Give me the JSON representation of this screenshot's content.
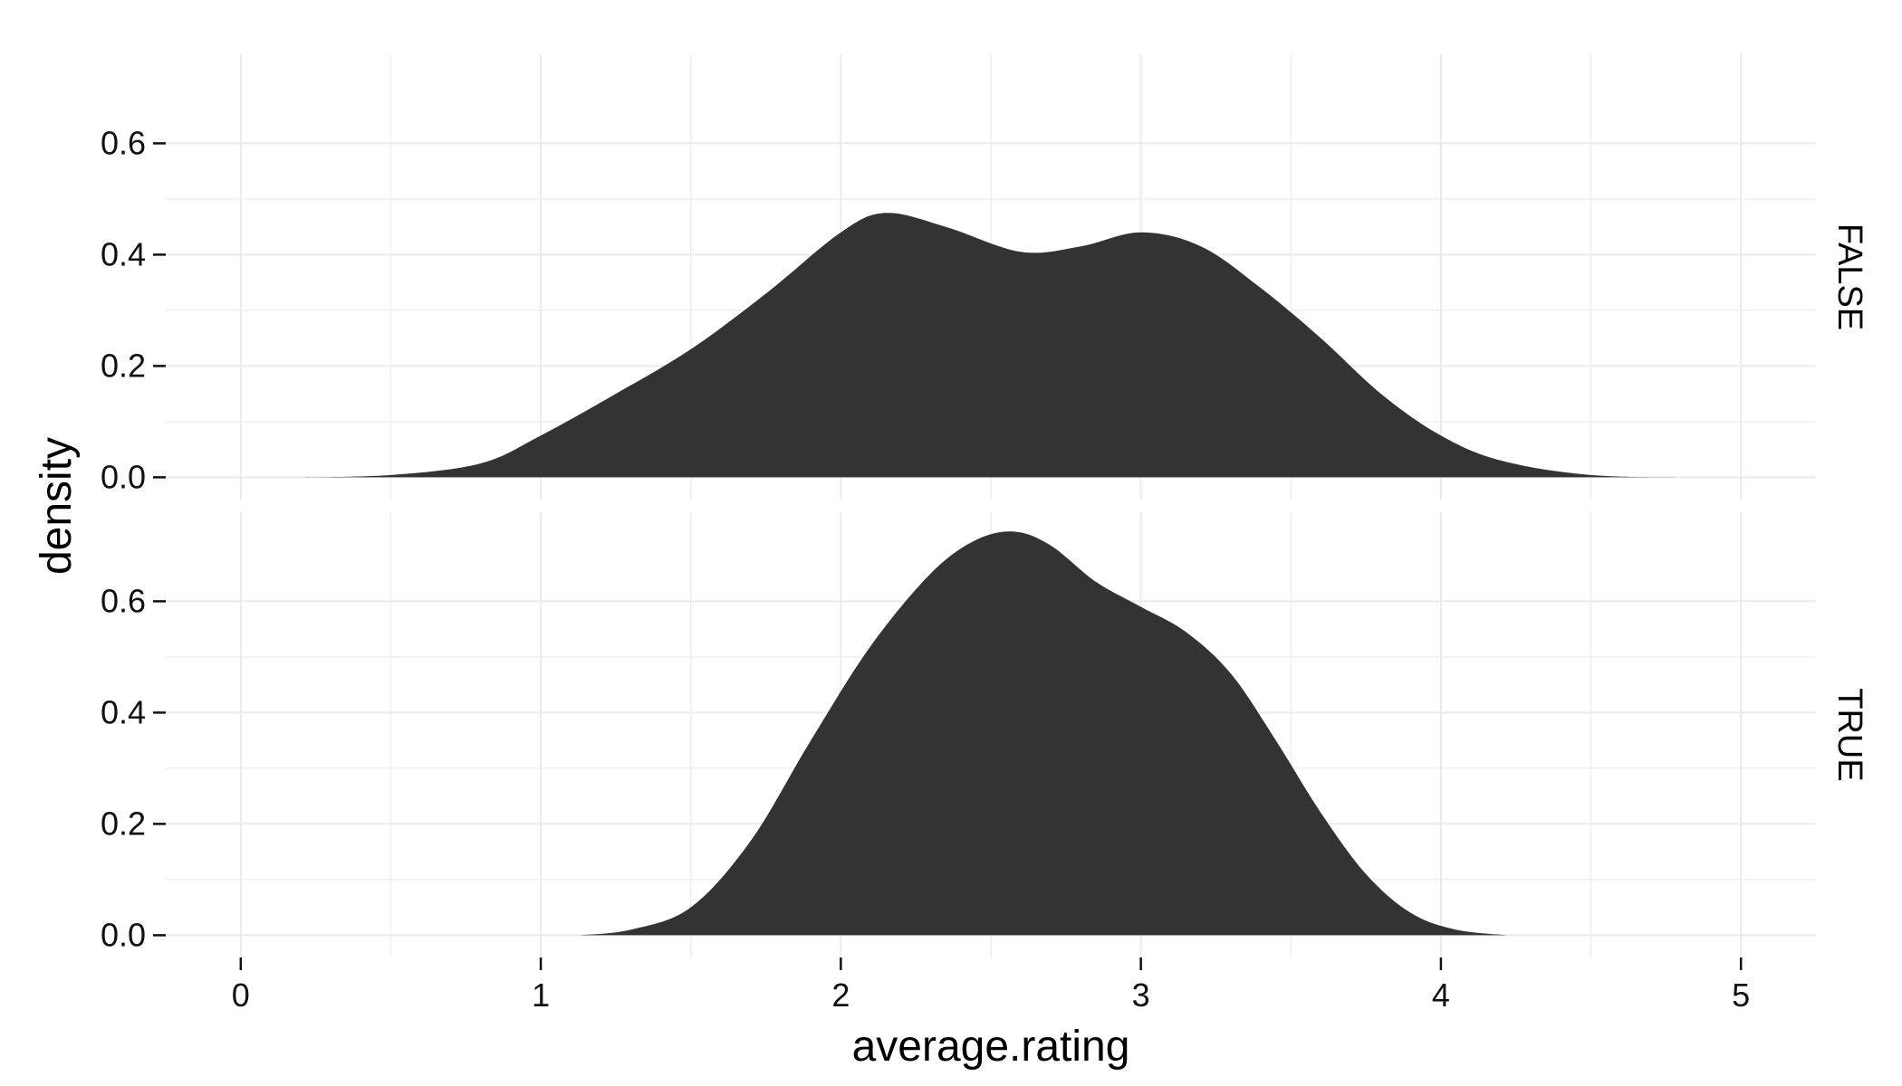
{
  "chart_data": {
    "type": "area",
    "subtype": "density",
    "facet": "rows",
    "xlabel": "average.rating",
    "ylabel": "density",
    "xlim": [
      -0.25,
      5.25
    ],
    "x_ticks": [
      0,
      1,
      2,
      3,
      4,
      5
    ],
    "x_tick_labels": [
      "0",
      "1",
      "2",
      "3",
      "4",
      "5"
    ],
    "grid": true,
    "fill_color": "#333333",
    "grid_color": "#ebebeb",
    "panels": [
      {
        "strip_label": "FALSE",
        "ylim": [
          -0.04,
          0.76
        ],
        "y_ticks": [
          0.0,
          0.2,
          0.4,
          0.6
        ],
        "y_tick_labels": [
          "0.0",
          "0.2",
          "0.4",
          "0.6"
        ],
        "x": [
          0.18,
          0.5,
          0.8,
          1.0,
          1.25,
          1.5,
          1.75,
          2.0,
          2.15,
          2.35,
          2.6,
          2.8,
          3.0,
          3.2,
          3.4,
          3.6,
          3.8,
          4.0,
          4.2,
          4.5,
          4.85
        ],
        "y": [
          0.0,
          0.004,
          0.025,
          0.075,
          0.15,
          0.23,
          0.33,
          0.44,
          0.475,
          0.45,
          0.405,
          0.415,
          0.44,
          0.415,
          0.34,
          0.25,
          0.15,
          0.075,
          0.03,
          0.004,
          0.0
        ]
      },
      {
        "strip_label": "TRUE",
        "ylim": [
          -0.04,
          0.76
        ],
        "y_ticks": [
          0.0,
          0.2,
          0.4,
          0.6
        ],
        "y_tick_labels": [
          "0.0",
          "0.2",
          "0.4",
          "0.6"
        ],
        "x": [
          1.13,
          1.3,
          1.5,
          1.7,
          1.9,
          2.1,
          2.3,
          2.45,
          2.58,
          2.7,
          2.85,
          3.0,
          3.15,
          3.3,
          3.45,
          3.6,
          3.75,
          3.9,
          4.05,
          4.22
        ],
        "y": [
          0.0,
          0.01,
          0.05,
          0.17,
          0.35,
          0.52,
          0.65,
          0.71,
          0.725,
          0.7,
          0.635,
          0.59,
          0.545,
          0.47,
          0.35,
          0.22,
          0.11,
          0.04,
          0.01,
          0.0
        ]
      }
    ]
  }
}
